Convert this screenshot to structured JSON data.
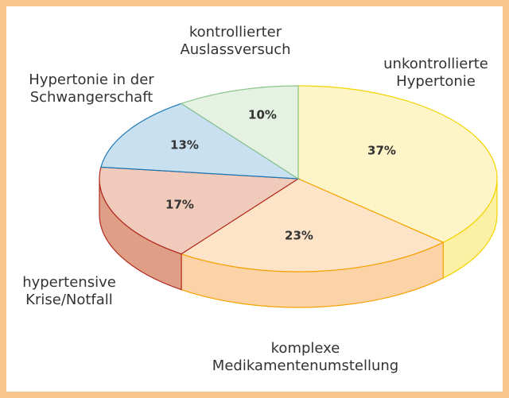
{
  "chart_data": {
    "type": "pie3d",
    "categories": [
      "unkontrollierte\nHypertonie",
      "komplexe\nMedikamentenumstellung",
      "hypertensive\nKrise/Notfall",
      "Hypertonie in der\nSchwangerschaft",
      "kontrollierter\nAuslassversuch"
    ],
    "values": [
      37,
      23,
      17,
      13,
      10
    ],
    "value_labels": [
      "37%",
      "23%",
      "17%",
      "13%",
      "10%"
    ],
    "colors": [
      "#fdf5c8",
      "#fde3c8",
      "#f0cbbb",
      "#c8e0f0",
      "#e4f1e3"
    ]
  }
}
